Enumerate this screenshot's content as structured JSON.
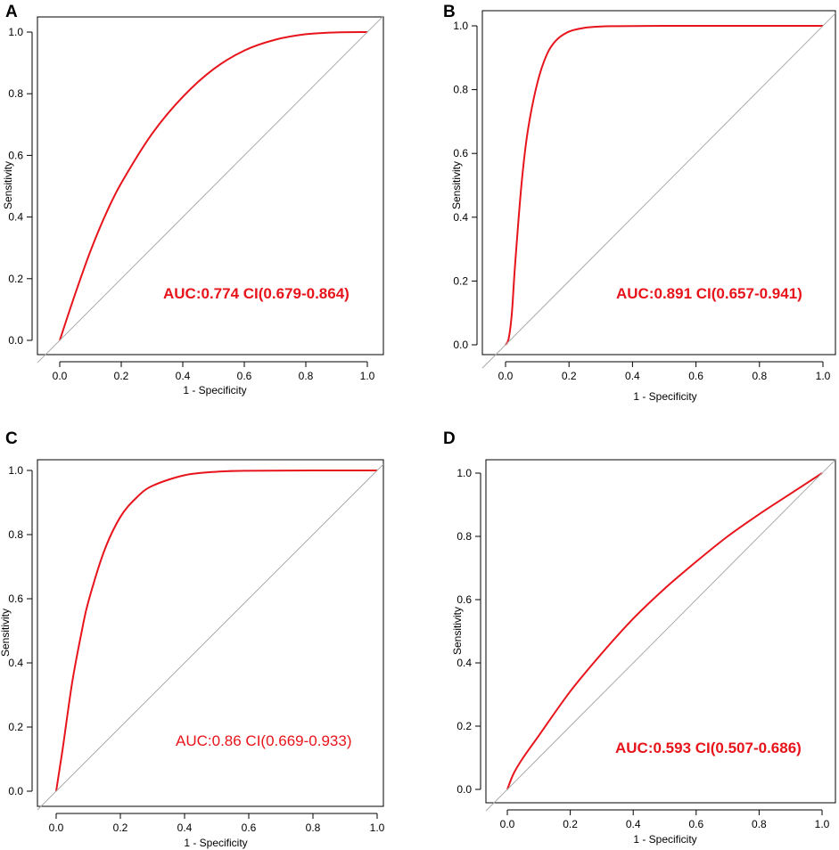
{
  "chart_data": [
    {
      "type": "line",
      "panel": "A",
      "xlabel": "1 - Specificity",
      "ylabel": "Sensitivity",
      "xlim": [
        0,
        1
      ],
      "ylim": [
        0,
        1
      ],
      "xticks": [
        "0.0",
        "0.2",
        "0.4",
        "0.6",
        "0.8",
        "1.0"
      ],
      "yticks": [
        "0.0",
        "0.2",
        "0.4",
        "0.6",
        "0.8",
        "1.0"
      ],
      "annotation": "AUC:0.774 CI(0.679-0.864)",
      "annotation_bold": true,
      "series": [
        {
          "name": "ROC",
          "color": "#e8141b",
          "x": [
            0,
            0.05,
            0.1,
            0.15,
            0.2,
            0.3,
            0.4,
            0.5,
            0.6,
            0.7,
            0.8,
            0.9,
            1.0
          ],
          "y": [
            0,
            0.15,
            0.29,
            0.41,
            0.51,
            0.67,
            0.79,
            0.88,
            0.94,
            0.975,
            0.993,
            0.999,
            1.0
          ]
        },
        {
          "name": "reference",
          "color": "#aaaaaa",
          "x": [
            0,
            1
          ],
          "y": [
            0,
            1
          ]
        }
      ]
    },
    {
      "type": "line",
      "panel": "B",
      "xlabel": "1 - Specificity",
      "ylabel": "Sensitivity",
      "xlim": [
        0,
        1
      ],
      "ylim": [
        0,
        1
      ],
      "xticks": [
        "0.0",
        "0.2",
        "0.4",
        "0.6",
        "0.8",
        "1.0"
      ],
      "yticks": [
        "0.0",
        "0.2",
        "0.4",
        "0.6",
        "0.8",
        "1.0"
      ],
      "annotation": "AUC:0.891 CI(0.657-0.941)",
      "annotation_bold": true,
      "series": [
        {
          "name": "ROC",
          "color": "#e8141b",
          "x": [
            0,
            0.01,
            0.02,
            0.03,
            0.05,
            0.07,
            0.1,
            0.13,
            0.16,
            0.2,
            0.25,
            0.3,
            0.35,
            0.5,
            0.7,
            1.0
          ],
          "y": [
            0,
            0.02,
            0.1,
            0.25,
            0.5,
            0.67,
            0.82,
            0.91,
            0.955,
            0.982,
            0.994,
            0.998,
            0.999,
            1.0,
            1.0,
            1.0
          ]
        },
        {
          "name": "reference",
          "color": "#aaaaaa",
          "x": [
            0,
            1
          ],
          "y": [
            0,
            1
          ]
        }
      ]
    },
    {
      "type": "line",
      "panel": "C",
      "xlabel": "1 - Specificity",
      "ylabel": "Sensitivity",
      "xlim": [
        0,
        1
      ],
      "ylim": [
        0,
        1
      ],
      "xticks": [
        "0.0",
        "0.2",
        "0.4",
        "0.6",
        "0.8",
        "1.0"
      ],
      "yticks": [
        "0.0",
        "0.2",
        "0.4",
        "0.6",
        "0.8",
        "1.0"
      ],
      "annotation": "AUC:0.86 CI(0.669-0.933)",
      "annotation_bold": false,
      "series": [
        {
          "name": "ROC",
          "color": "#e8141b",
          "x": [
            0,
            0.02,
            0.05,
            0.08,
            0.1,
            0.15,
            0.2,
            0.25,
            0.3,
            0.4,
            0.5,
            0.6,
            0.8,
            1.0
          ],
          "y": [
            0,
            0.13,
            0.34,
            0.5,
            0.59,
            0.75,
            0.855,
            0.915,
            0.952,
            0.985,
            0.996,
            0.999,
            1.0,
            1.0
          ]
        },
        {
          "name": "reference",
          "color": "#aaaaaa",
          "x": [
            0,
            1
          ],
          "y": [
            0,
            1
          ]
        }
      ]
    },
    {
      "type": "line",
      "panel": "D",
      "xlabel": "1 - Specificity",
      "ylabel": "Sensitivity",
      "xlim": [
        0,
        1
      ],
      "ylim": [
        0,
        1
      ],
      "xticks": [
        "0.0",
        "0.2",
        "0.4",
        "0.6",
        "0.8",
        "1.0"
      ],
      "yticks": [
        "0.0",
        "0.2",
        "0.4",
        "0.6",
        "0.8",
        "1.0"
      ],
      "annotation": "AUC:0.593 CI(0.507-0.686)",
      "annotation_bold": true,
      "series": [
        {
          "name": "ROC",
          "color": "#e8141b",
          "x": [
            0,
            0.02,
            0.05,
            0.1,
            0.2,
            0.3,
            0.4,
            0.5,
            0.6,
            0.7,
            0.8,
            0.9,
            1.0
          ],
          "y": [
            0,
            0.05,
            0.1,
            0.17,
            0.31,
            0.43,
            0.54,
            0.635,
            0.72,
            0.8,
            0.87,
            0.935,
            1.0
          ]
        },
        {
          "name": "reference",
          "color": "#aaaaaa",
          "x": [
            0,
            1
          ],
          "y": [
            0,
            1
          ]
        }
      ]
    }
  ]
}
